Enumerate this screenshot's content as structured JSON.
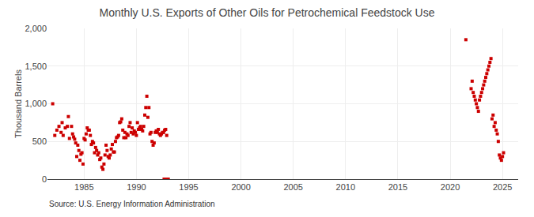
{
  "chart_data": {
    "type": "scatter",
    "title": "Monthly U.S. Exports of Other Oils for Petrochemical Feedstock Use",
    "ylabel": "Thousand Barrels",
    "annotations": [
      "Source: U.S. Energy Information Administration"
    ],
    "xlim": [
      1981.5,
      2026.5
    ],
    "ylim": [
      0,
      2000
    ],
    "xticks": [
      1985,
      1990,
      1995,
      2000,
      2005,
      2010,
      2015,
      2020,
      2025
    ],
    "yticks": [
      0,
      500,
      {
        "value": 1000,
        "label": "1,000"
      },
      {
        "value": 1500,
        "label": "1,500"
      },
      {
        "value": 2000,
        "label": "2,000"
      }
    ],
    "grid": true,
    "series": [
      {
        "type": "scatter",
        "marker": "square",
        "color": "#cc0000",
        "x": [
          1982.0,
          1982.2,
          1982.4,
          1982.6,
          1982.8,
          1982.9,
          1983.0,
          1983.2,
          1983.4,
          1983.5,
          1983.6,
          1983.8,
          1983.9,
          1984.0,
          1984.1,
          1984.2,
          1984.3,
          1984.4,
          1984.5,
          1984.6,
          1984.7,
          1984.8,
          1984.9,
          1985.0,
          1985.1,
          1985.2,
          1985.3,
          1985.4,
          1985.5,
          1985.6,
          1985.7,
          1985.8,
          1985.9,
          1986.0,
          1986.1,
          1986.2,
          1986.3,
          1986.4,
          1986.5,
          1986.6,
          1986.7,
          1986.8,
          1986.9,
          1987.0,
          1987.1,
          1987.2,
          1987.3,
          1987.4,
          1987.5,
          1987.6,
          1987.7,
          1987.8,
          1987.9,
          1988.0,
          1988.1,
          1988.2,
          1988.3,
          1988.4,
          1988.5,
          1988.6,
          1988.7,
          1988.8,
          1988.9,
          1989.0,
          1989.1,
          1989.2,
          1989.3,
          1989.4,
          1989.5,
          1989.6,
          1989.7,
          1989.8,
          1989.9,
          1990.0,
          1990.1,
          1990.2,
          1990.3,
          1990.4,
          1990.5,
          1990.6,
          1990.7,
          1990.8,
          1990.9,
          1991.0,
          1991.1,
          1991.2,
          1991.3,
          1991.4,
          1991.5,
          1991.6,
          1991.7,
          1991.8,
          1991.9,
          1992.0,
          1992.1,
          1992.2,
          1992.3,
          1992.4,
          1992.5,
          1992.6,
          1992.7,
          1992.8,
          1992.9
        ],
        "values": [
          1000,
          580,
          650,
          700,
          620,
          750,
          580,
          680,
          700,
          830,
          540,
          700,
          600,
          560,
          530,
          480,
          300,
          450,
          380,
          250,
          330,
          350,
          200,
          540,
          520,
          600,
          680,
          650,
          650,
          580,
          460,
          500,
          480,
          350,
          420,
          380,
          320,
          350,
          260,
          280,
          160,
          130,
          200,
          320,
          450,
          380,
          300,
          280,
          320,
          400,
          460,
          360,
          360,
          500,
          550,
          560,
          580,
          750,
          760,
          800,
          650,
          550,
          620,
          550,
          600,
          580,
          700,
          750,
          620,
          680,
          600,
          640,
          620,
          580,
          750,
          660,
          680,
          700,
          660,
          640,
          700,
          850,
          950,
          1100,
          820,
          950,
          600,
          620,
          500,
          450,
          480,
          620,
          640,
          620,
          660,
          600,
          580,
          600,
          620,
          620,
          650,
          660,
          580
        ]
      },
      {
        "type": "bar",
        "color": "#cc0000",
        "x": [
          1992.5
        ],
        "width": [
          0.7
        ],
        "values": [
          20
        ]
      },
      {
        "type": "scatter",
        "marker": "square",
        "color": "#cc0000",
        "x": [
          2021.5,
          2022.0,
          2022.1,
          2022.2,
          2022.3,
          2022.4,
          2022.5,
          2022.6,
          2022.7,
          2022.8,
          2022.9,
          2023.0,
          2023.1,
          2023.2,
          2023.3,
          2023.4,
          2023.5,
          2023.6,
          2023.7,
          2023.8,
          2023.9,
          2024.0,
          2024.1,
          2024.2,
          2024.3,
          2024.4,
          2024.5,
          2024.6,
          2024.7,
          2024.8,
          2024.9,
          2025.0,
          2025.1
        ],
        "values": [
          1850,
          1200,
          1300,
          1150,
          1100,
          1050,
          1000,
          950,
          900,
          1050,
          1100,
          1150,
          1200,
          1250,
          1300,
          1350,
          1400,
          1450,
          1500,
          1550,
          1600,
          800,
          850,
          700,
          750,
          650,
          600,
          500,
          320,
          280,
          250,
          300,
          350
        ]
      }
    ]
  }
}
